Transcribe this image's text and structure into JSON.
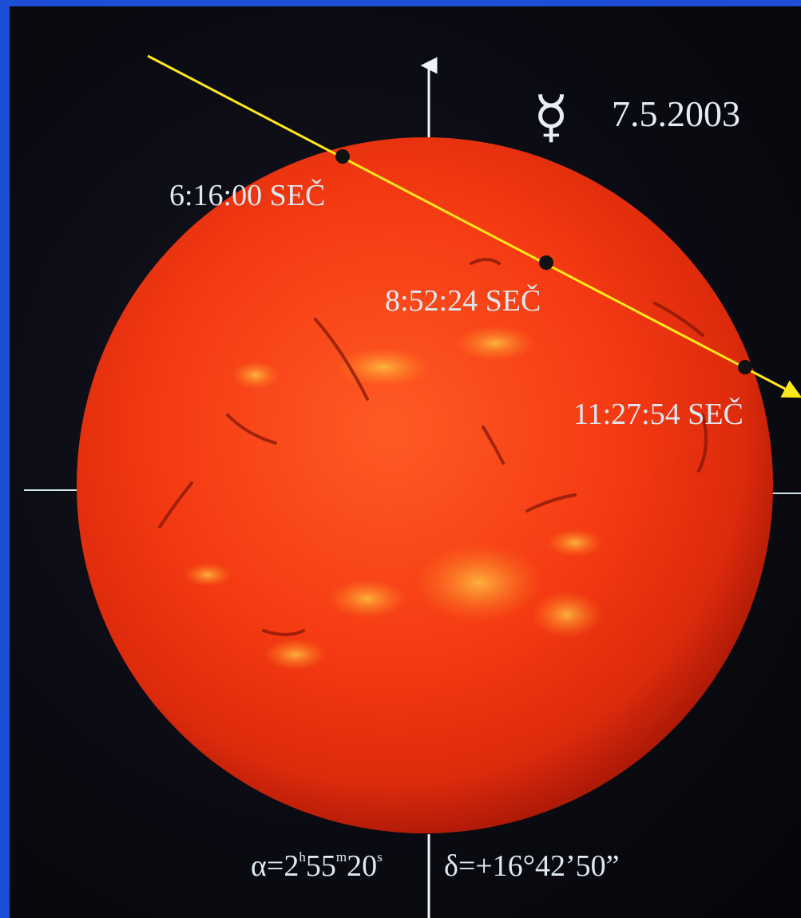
{
  "date": "7.5.2003",
  "planet_symbol": "☿",
  "planet_symbol_name": "mercury-symbol",
  "colors": {
    "sun_core": "#ff4a1a",
    "sun_edge": "#c6200a",
    "transit_path": "#ffe81a",
    "crosshair": "#cfe6ee",
    "border": "#1d4fd6"
  },
  "transit_points": [
    {
      "time": "6:16:00 SEČ"
    },
    {
      "time": "8:52:24 SEČ"
    },
    {
      "time": "11:27:54 SEČ"
    }
  ],
  "coordinates": {
    "ra_prefix": "α=2",
    "ra_h": "h",
    "ra_min_val": "55",
    "ra_m": "m",
    "ra_sec_val": "20",
    "ra_s": "s",
    "dec": "δ=+16°42’50”"
  }
}
